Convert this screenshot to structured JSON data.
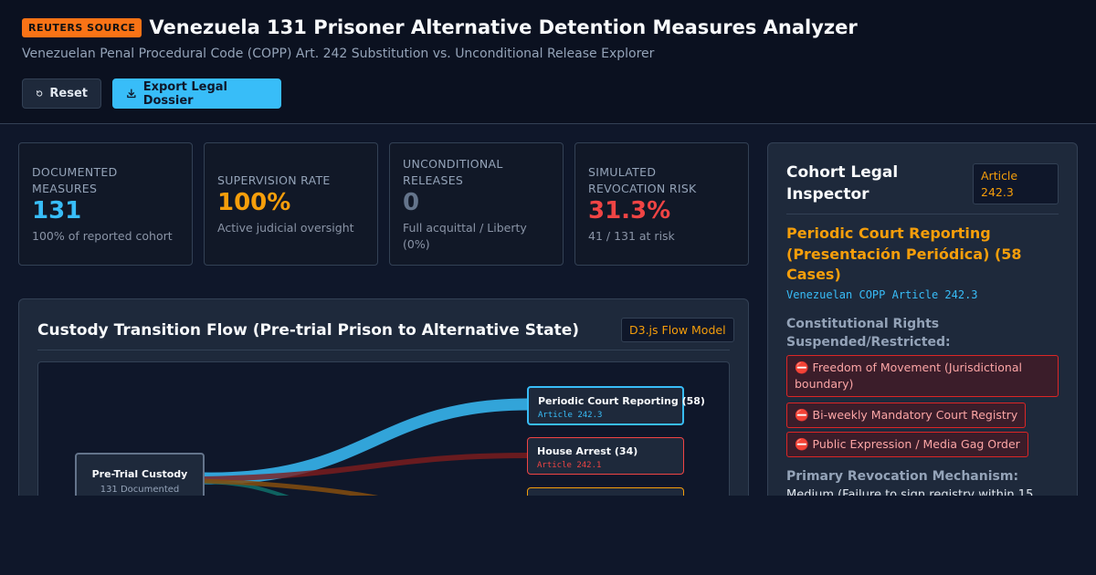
{
  "header": {
    "badge": "REUTERS SOURCE",
    "title": "Venezuela 131 Prisoner Alternative Detention Measures Analyzer",
    "subtitle": "Venezuelan Penal Procedural Code (COPP) Art. 242 Substitution vs. Unconditional Release Explorer",
    "reset_label": "Reset",
    "export_label": "Export Legal Dossier"
  },
  "stats": [
    {
      "label": "DOCUMENTED MEASURES",
      "value": "131",
      "sub": "100% of reported cohort",
      "color": "#38bdf8"
    },
    {
      "label": "SUPERVISION RATE",
      "value": "100%",
      "sub": "Active judicial oversight",
      "color": "#f59e0b"
    },
    {
      "label": "UNCONDITIONAL RELEASES",
      "value": "0",
      "sub": "Full acquittal / Liberty (0%)",
      "color": "#64748b"
    },
    {
      "label": "SIMULATED REVOCATION RISK",
      "value": "31.3%",
      "sub": "41 / 131 at risk",
      "color": "#ef4444"
    }
  ],
  "flow": {
    "title": "Custody Transition Flow (Pre-trial Prison to Alternative State)",
    "tag": "D3.js Flow Model",
    "source": {
      "label": "Pre-Trial Custody",
      "sub": "131 Documented"
    },
    "targets": [
      {
        "label": "Periodic Court Reporting (58)",
        "article": "Article 242.3",
        "value": 58,
        "color": "#38bdf8"
      },
      {
        "label": "House Arrest (34)",
        "article": "Article 242.1",
        "value": 34,
        "color": "#ef4444"
      }
    ]
  },
  "inspector": {
    "title": "Cohort Legal Inspector",
    "tag": "Article 242.3",
    "measure_title": "Periodic Court Reporting (Presentación Periódica) (58 Cases)",
    "measure_article": "Venezuelan COPP Article 242.3",
    "rights_label": "Constitutional Rights Suspended/Restricted:",
    "rights": [
      "⛔ Freedom of Movement (Jurisdictional boundary)",
      "⛔ Bi-weekly Mandatory Court Registry",
      "⛔ Public Expression / Media Gag Order"
    ],
    "mechanism_label": "Primary Revocation Mechanism:",
    "mechanism_text": "Medium (Failure to sign registry within 15"
  }
}
